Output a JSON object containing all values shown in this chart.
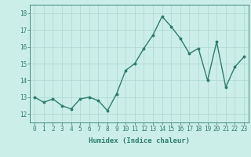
{
  "x": [
    0,
    1,
    2,
    3,
    4,
    5,
    6,
    7,
    8,
    9,
    10,
    11,
    12,
    13,
    14,
    15,
    16,
    17,
    18,
    19,
    20,
    21,
    22,
    23
  ],
  "y": [
    13.0,
    12.7,
    12.9,
    12.5,
    12.3,
    12.9,
    13.0,
    12.8,
    12.2,
    13.2,
    14.6,
    15.0,
    15.9,
    16.7,
    17.8,
    17.2,
    16.5,
    15.6,
    15.9,
    14.0,
    16.3,
    13.6,
    14.8,
    15.4
  ],
  "line_color": "#2e7d6e",
  "marker": "o",
  "marker_size": 1.8,
  "line_width": 1.0,
  "bg_color": "#cceee8",
  "grid_color": "#aad8d0",
  "xlabel": "Humidex (Indice chaleur)",
  "xlim": [
    -0.5,
    23.5
  ],
  "ylim": [
    11.5,
    18.5
  ],
  "yticks": [
    12,
    13,
    14,
    15,
    16,
    17,
    18
  ],
  "xticks": [
    0,
    1,
    2,
    3,
    4,
    5,
    6,
    7,
    8,
    9,
    10,
    11,
    12,
    13,
    14,
    15,
    16,
    17,
    18,
    19,
    20,
    21,
    22,
    23
  ],
  "label_fontsize": 6.5,
  "tick_fontsize": 5.5
}
